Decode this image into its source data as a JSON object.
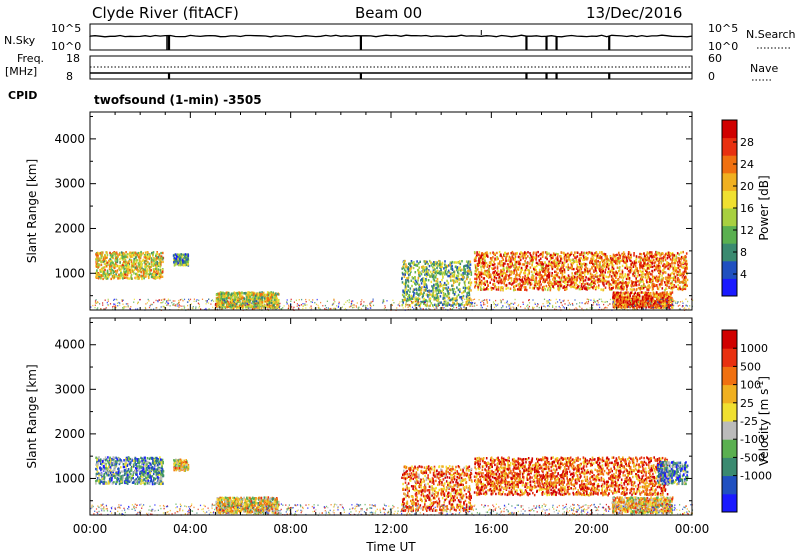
{
  "header": {
    "station": "Clyde River (fitACF)",
    "beam": "Beam 00",
    "date": "13/Dec/2016"
  },
  "params": {
    "nsky_label": "N.Sky",
    "nsky_ticks": [
      "10^5",
      "10^0"
    ],
    "nsearch_label": "N.Search",
    "nsearch_ticks": [
      "10^5",
      "10^0"
    ],
    "freq_label_1": "Freq.",
    "freq_label_2": "[MHz]",
    "freq_ticks": [
      "18",
      "8"
    ],
    "nave_label": "Nave",
    "nave_ticks": [
      "60",
      "0"
    ],
    "cpid_label": "CPID",
    "cpid_value": "twofsound (1-min) -3505"
  },
  "chart_data": [
    {
      "type": "heatmap",
      "ylabel": "Slant Range [km]",
      "xlabel": "",
      "x_ticks": [
        "00:00",
        "04:00",
        "08:00",
        "12:00",
        "16:00",
        "20:00",
        "00:00"
      ],
      "xlim_hours": [
        0,
        24
      ],
      "y_ticks": [
        1000,
        2000,
        3000,
        4000
      ],
      "ylim": [
        180,
        4600
      ],
      "colorbar": {
        "label": "Power [dB]",
        "ticks": [
          "4",
          "8",
          "12",
          "16",
          "20",
          "24",
          "28"
        ],
        "range": [
          0,
          32
        ],
        "colors": [
          "#1a1aff",
          "#2050c0",
          "#3a8a70",
          "#5ab050",
          "#a8d040",
          "#f0e030",
          "#f0b020",
          "#f07010",
          "#e83010",
          "#d00000"
        ]
      },
      "scatter_regions": [
        {
          "t0": 0.2,
          "t1": 2.9,
          "r0": 900,
          "r1": 1500,
          "level": 0.55
        },
        {
          "t0": 3.3,
          "t1": 3.9,
          "r0": 1200,
          "r1": 1450,
          "level": 0.3
        },
        {
          "t0": 5.0,
          "t1": 7.5,
          "r0": 250,
          "r1": 600,
          "level": 0.5
        },
        {
          "t0": 12.4,
          "t1": 15.2,
          "r0": 300,
          "r1": 1300,
          "level": 0.4
        },
        {
          "t0": 15.3,
          "t1": 23.8,
          "r0": 650,
          "r1": 1500,
          "level": 0.75
        },
        {
          "t0": 20.8,
          "t1": 23.2,
          "r0": 250,
          "r1": 600,
          "level": 0.8
        }
      ]
    },
    {
      "type": "heatmap",
      "ylabel": "Slant Range [km]",
      "xlabel": "Time UT",
      "x_ticks": [
        "00:00",
        "04:00",
        "08:00",
        "12:00",
        "16:00",
        "20:00",
        "00:00"
      ],
      "xlim_hours": [
        0,
        24
      ],
      "y_ticks": [
        1000,
        2000,
        3000,
        4000
      ],
      "ylim": [
        180,
        4600
      ],
      "colorbar": {
        "label": "Velocity [m s",
        "label_sup": "-1",
        "label_end": "]",
        "ticks": [
          "1000",
          "500",
          "100",
          "25",
          "-25",
          "-100",
          "-500",
          "-1000"
        ],
        "colors": [
          "#1a1aff",
          "#2050c0",
          "#3a8a70",
          "#5ab050",
          "#bbbbbb",
          "#f0e030",
          "#f0b020",
          "#f07010",
          "#e83010",
          "#d00000"
        ]
      },
      "scatter_regions": [
        {
          "t0": 0.2,
          "t1": 2.9,
          "r0": 900,
          "r1": 1500,
          "level": 0.3
        },
        {
          "t0": 3.3,
          "t1": 3.9,
          "r0": 1200,
          "r1": 1450,
          "level": 0.55
        },
        {
          "t0": 5.0,
          "t1": 7.5,
          "r0": 250,
          "r1": 600,
          "level": 0.55
        },
        {
          "t0": 12.4,
          "t1": 15.2,
          "r0": 300,
          "r1": 1300,
          "level": 0.75
        },
        {
          "t0": 15.3,
          "t1": 23.0,
          "r0": 650,
          "r1": 1500,
          "level": 0.8
        },
        {
          "t0": 22.6,
          "t1": 23.8,
          "r0": 900,
          "r1": 1400,
          "level": 0.25
        },
        {
          "t0": 20.8,
          "t1": 23.2,
          "r0": 250,
          "r1": 600,
          "level": 0.6
        }
      ]
    }
  ]
}
